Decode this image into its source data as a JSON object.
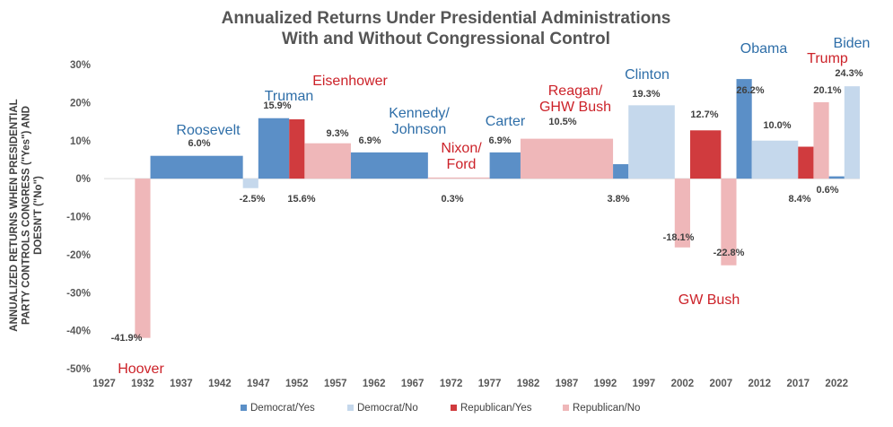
{
  "chart_data": {
    "type": "bar",
    "title": [
      "Annualized Returns Under Presidential Administrations",
      "With and Without Congressional Control"
    ],
    "ylabel": [
      "ANNUALIZED RETURNS WHEN PRESIDENTIAL",
      "PARTY CONTROLS CONGRESS (\"Yes\") AND",
      "DOESN'T (\"No\")"
    ],
    "xlabel": "",
    "ylim": [
      -50,
      30
    ],
    "yticks": [
      30,
      20,
      10,
      0,
      -10,
      -20,
      -30,
      -40,
      -50
    ],
    "ytick_labels": [
      "30%",
      "20%",
      "10%",
      "0%",
      "-10%",
      "-20%",
      "-30%",
      "-40%",
      "-50%"
    ],
    "xlim": [
      1927,
      2025
    ],
    "xticks": [
      1927,
      1932,
      1937,
      1942,
      1947,
      1952,
      1957,
      1962,
      1967,
      1972,
      1977,
      1982,
      1987,
      1992,
      1997,
      2002,
      2007,
      2012,
      2017,
      2022
    ],
    "colors": {
      "Democrat/Yes": "#5b8fc7",
      "Democrat/No": "#c5d8ec",
      "Republican/Yes": "#d03b3e",
      "Republican/No": "#efb7b9"
    },
    "legend": [
      "Democrat/Yes",
      "Democrat/No",
      "Republican/Yes",
      "Republican/No"
    ],
    "bars": [
      {
        "start": 1931,
        "end": 1933,
        "value": -41.9,
        "group": "Republican/No",
        "label": "-41.9%"
      },
      {
        "start": 1933,
        "end": 1945,
        "value": 6.0,
        "group": "Democrat/Yes",
        "label": "6.0%"
      },
      {
        "start": 1945,
        "end": 1947,
        "value": -2.5,
        "group": "Democrat/No",
        "label": "-2.5%"
      },
      {
        "start": 1947,
        "end": 1951,
        "value": 15.9,
        "group": "Democrat/Yes",
        "label": "15.9%"
      },
      {
        "start": 1951,
        "end": 1953,
        "value": 15.6,
        "group": "Republican/Yes",
        "label": "15.6%"
      },
      {
        "start": 1953,
        "end": 1959,
        "value": 9.3,
        "group": "Republican/No",
        "label": "9.3%"
      },
      {
        "start": 1959,
        "end": 1969,
        "value": 6.9,
        "group": "Democrat/Yes",
        "label": "6.9%"
      },
      {
        "start": 1969,
        "end": 1977,
        "value": 0.3,
        "group": "Republican/No",
        "label": "0.3%"
      },
      {
        "start": 1977,
        "end": 1981,
        "value": 6.9,
        "group": "Democrat/Yes",
        "label": "6.9%"
      },
      {
        "start": 1981,
        "end": 1993,
        "value": 10.5,
        "group": "Republican/No",
        "label": "10.5%"
      },
      {
        "start": 1993,
        "end": 1995,
        "value": 3.8,
        "group": "Democrat/Yes",
        "label": "3.8%"
      },
      {
        "start": 1995,
        "end": 2001,
        "value": 19.3,
        "group": "Democrat/No",
        "label": "19.3%"
      },
      {
        "start": 2001,
        "end": 2003,
        "value": -18.1,
        "group": "Republican/No",
        "label": "-18.1%"
      },
      {
        "start": 2003,
        "end": 2007,
        "value": 12.7,
        "group": "Republican/Yes",
        "label": "12.7%"
      },
      {
        "start": 2007,
        "end": 2009,
        "value": -22.8,
        "group": "Republican/No",
        "label": "-22.8%"
      },
      {
        "start": 2009,
        "end": 2011,
        "value": 26.2,
        "group": "Democrat/Yes",
        "label": "26.2%"
      },
      {
        "start": 2011,
        "end": 2017,
        "value": 10.0,
        "group": "Democrat/No",
        "label": "10.0%"
      },
      {
        "start": 2017,
        "end": 2019,
        "value": 8.4,
        "group": "Republican/Yes",
        "label": "8.4%"
      },
      {
        "start": 2019,
        "end": 2021,
        "value": 20.1,
        "group": "Republican/No",
        "label": "20.1%"
      },
      {
        "start": 2021,
        "end": 2023,
        "value": 0.6,
        "group": "Democrat/Yes",
        "label": "0.6%"
      },
      {
        "start": 2023,
        "end": 2025,
        "value": 24.3,
        "group": "Democrat/No",
        "label": "24.3%"
      }
    ],
    "annotations": [
      {
        "text": [
          "Hoover"
        ],
        "party": "Republican"
      },
      {
        "text": [
          "Roosevelt"
        ],
        "party": "Democrat"
      },
      {
        "text": [
          "Truman"
        ],
        "party": "Democrat"
      },
      {
        "text": [
          "Eisenhower"
        ],
        "party": "Republican"
      },
      {
        "text": [
          "Kennedy/",
          "Johnson"
        ],
        "party": "Democrat"
      },
      {
        "text": [
          "Nixon/",
          "Ford"
        ],
        "party": "Republican"
      },
      {
        "text": [
          "Carter"
        ],
        "party": "Democrat"
      },
      {
        "text": [
          "Reagan/",
          "GHW Bush"
        ],
        "party": "Republican"
      },
      {
        "text": [
          "Clinton"
        ],
        "party": "Democrat"
      },
      {
        "text": [
          "GW Bush"
        ],
        "party": "Republican"
      },
      {
        "text": [
          "Obama"
        ],
        "party": "Democrat"
      },
      {
        "text": [
          "Trump"
        ],
        "party": "Republican"
      },
      {
        "text": [
          "Biden"
        ],
        "party": "Democrat"
      }
    ],
    "party_text_colors": {
      "Democrat": "#2e6ea8",
      "Republican": "#cc2229"
    }
  }
}
